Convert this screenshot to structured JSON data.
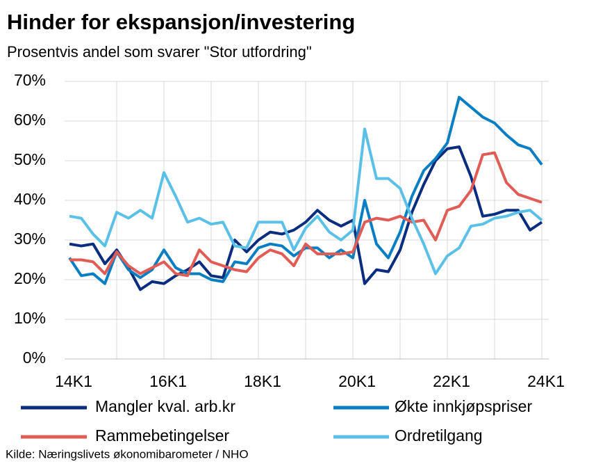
{
  "chart_data": {
    "type": "line",
    "title": "Hinder for ekspansjon/investering",
    "subtitle": "Prosentvis andel som svarer \"Stor utfordring\"",
    "source": "Kilde: Næringslivets økonomibarometer / NHO",
    "categories": [
      "14K1",
      null,
      null,
      null,
      null,
      null,
      null,
      null,
      "16K1",
      null,
      null,
      null,
      null,
      null,
      null,
      null,
      "18K1",
      null,
      null,
      null,
      null,
      null,
      null,
      null,
      "20K1",
      null,
      null,
      null,
      null,
      null,
      null,
      null,
      "22K1",
      null,
      null,
      null,
      null,
      null,
      null,
      null,
      "24K1"
    ],
    "series": [
      {
        "name": "Mangler kval. arb.kr",
        "color": "#0b2d7f",
        "values": [
          29,
          28.5,
          29,
          24,
          27.5,
          23,
          17.5,
          19.5,
          19,
          21,
          22.5,
          24.5,
          21,
          20.5,
          30,
          27,
          30,
          32,
          31.5,
          32.5,
          34.5,
          37.5,
          35,
          33.5,
          35,
          19,
          22.5,
          22,
          27.5,
          37,
          44,
          50,
          53,
          53.5,
          46,
          36,
          36.5,
          37.5,
          37.5,
          32.5,
          34.5
        ]
      },
      {
        "name": "Økte innkjøpspriser",
        "color": "#0a7ec2",
        "values": [
          25.5,
          21,
          21.5,
          19,
          27,
          22.5,
          20.5,
          22.5,
          27.5,
          23,
          21.5,
          21.5,
          20,
          19.5,
          24.5,
          24,
          28,
          29,
          28.5,
          26,
          28,
          28,
          25.5,
          27.5,
          25.5,
          40,
          29,
          25.5,
          32,
          41,
          47.5,
          50.5,
          54.5,
          66,
          63.5,
          61,
          59.5,
          56.5,
          54,
          53,
          49
        ]
      },
      {
        "name": "Rammebetingelser",
        "color": "#e05c55",
        "values": [
          25,
          25,
          24.5,
          21.5,
          27,
          23.5,
          21.5,
          23,
          24.5,
          21.5,
          21,
          27.5,
          24.5,
          23.5,
          22.5,
          22,
          25.5,
          27.5,
          26.5,
          23.5,
          29,
          26.5,
          26.5,
          26.5,
          27,
          34.5,
          35.5,
          35,
          36,
          34.5,
          35,
          30,
          37.5,
          38.5,
          42.5,
          51.5,
          52,
          44.5,
          41.5,
          40.5,
          39.5
        ]
      },
      {
        "name": "Ordretilgang",
        "color": "#5bc0e8",
        "values": [
          36,
          35.5,
          31.5,
          28.5,
          37,
          35.5,
          37.5,
          35.5,
          47,
          41,
          34.5,
          35.5,
          34,
          34.5,
          28.5,
          28,
          34.5,
          34.5,
          34.5,
          27.5,
          33,
          36,
          32,
          30,
          32.5,
          58,
          45.5,
          45.5,
          43,
          35.5,
          29,
          21.5,
          26,
          28,
          33.5,
          34,
          35.5,
          36,
          37,
          37.5,
          35
        ]
      }
    ],
    "ylim": [
      0,
      70
    ],
    "yticks": [
      {
        "value": 0,
        "label": "0%"
      },
      {
        "value": 10,
        "label": "10%"
      },
      {
        "value": 20,
        "label": "20%"
      },
      {
        "value": 30,
        "label": "30%"
      },
      {
        "value": 40,
        "label": "40%"
      },
      {
        "value": 50,
        "label": "50%"
      },
      {
        "value": 60,
        "label": "60%"
      },
      {
        "value": 70,
        "label": "70%"
      }
    ],
    "grid": true,
    "legend": "bottom"
  }
}
